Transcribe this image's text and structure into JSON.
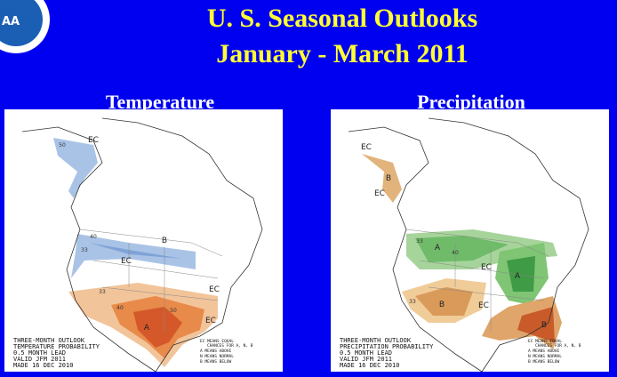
{
  "header": {
    "title_line1": "U. S. Seasonal Outlooks",
    "title_line2": "January - March 2011"
  },
  "logo": {
    "text": "AA"
  },
  "panels": [
    {
      "heading": "Temperature",
      "labels": [
        "EC",
        "EC",
        "EC",
        "EC",
        "A",
        "B",
        "50",
        "40",
        "33",
        "33",
        "40",
        "50"
      ],
      "caption": [
        "THREE-MONTH OUTLOOK",
        "TEMPERATURE PROBABILITY",
        "0.5 MONTH LEAD",
        "VALID JFM 2011",
        "MADE 16 DEC 2010"
      ],
      "key": [
        "EC MEANS EQUAL",
        "CHANCES FOR A, N, B",
        "A MEANS ABOVE",
        "N MEANS NORMAL",
        "B MEANS BELOW"
      ]
    },
    {
      "heading": "Precipitation",
      "labels": [
        "EC",
        "EC",
        "EC",
        "EC",
        "A",
        "A",
        "B",
        "B",
        "B",
        "33",
        "40",
        "33"
      ],
      "caption": [
        "THREE-MONTH OUTLOOK",
        "PRECIPITATION PROBABILITY",
        "0.5 MONTH LEAD",
        "VALID JFM 2011",
        "MADE 16 DEC 2010"
      ],
      "key": [
        "EC MEANS EQUAL",
        "CHANCES FOR A, N, B",
        "A MEANS ABOVE",
        "N MEANS NORMAL",
        "B MEANS BELOW"
      ]
    }
  ]
}
